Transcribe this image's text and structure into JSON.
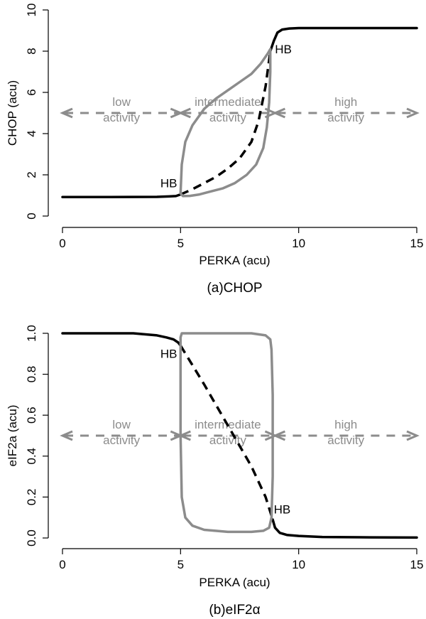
{
  "colors": {
    "stable": "#000000",
    "unstable": "#000000",
    "limit_cycle": "#8c8c8c",
    "region": "#8c8c8c"
  },
  "chart_data": [
    {
      "type": "line",
      "caption": "(a)CHOP",
      "xlabel": "PERKA (acu)",
      "ylabel": "CHOP (acu)",
      "xlim": [
        0,
        15
      ],
      "ylim": [
        0,
        10
      ],
      "xticks": [
        0,
        5,
        10,
        15
      ],
      "yticks": [
        0,
        2,
        4,
        6,
        8,
        10
      ],
      "regions": [
        {
          "lines": [
            "low",
            "activity"
          ],
          "x_range": [
            0,
            5
          ],
          "y": 5
        },
        {
          "lines": [
            "intermediate",
            "activity"
          ],
          "x_range": [
            5,
            9
          ],
          "y": 5
        },
        {
          "lines": [
            "high",
            "activity"
          ],
          "x_range": [
            9,
            15
          ],
          "y": 5
        }
      ],
      "series": [
        {
          "style": "stable",
          "x": [
            0,
            2,
            4,
            4.5,
            4.8,
            5.0
          ],
          "y": [
            0.92,
            0.92,
            0.93,
            0.95,
            0.97,
            1.05
          ]
        },
        {
          "style": "unstable",
          "x": [
            5.0,
            5.5,
            6.0,
            6.5,
            7.0,
            7.5,
            8.0,
            8.3,
            8.6,
            8.8
          ],
          "y": [
            1.05,
            1.3,
            1.6,
            1.9,
            2.3,
            2.8,
            3.6,
            4.6,
            6.3,
            8.0
          ]
        },
        {
          "style": "stable",
          "x": [
            8.8,
            8.95,
            9.1,
            9.3,
            9.6,
            10,
            12,
            15
          ],
          "y": [
            8.0,
            8.5,
            8.9,
            9.05,
            9.1,
            9.12,
            9.12,
            9.12
          ]
        },
        {
          "style": "limit_cycle",
          "closed": true,
          "x": [
            5.0,
            5.05,
            5.2,
            5.5,
            6.0,
            6.5,
            7.0,
            7.5,
            8.0,
            8.4,
            8.7,
            8.8,
            8.8,
            8.75,
            8.65,
            8.5,
            8.2,
            7.8,
            7.3,
            6.8,
            6.3,
            5.8,
            5.4,
            5.1,
            5.0
          ],
          "y": [
            1.1,
            2.5,
            3.6,
            4.4,
            5.2,
            5.7,
            6.1,
            6.5,
            6.9,
            7.4,
            7.9,
            8.1,
            7.0,
            5.5,
            4.3,
            3.3,
            2.5,
            2.0,
            1.6,
            1.35,
            1.2,
            1.05,
            0.98,
            0.97,
            1.1
          ]
        }
      ],
      "annotations": [
        {
          "text": "HB",
          "x": 4.5,
          "y": 1.4
        },
        {
          "text": "HB",
          "x": 9.35,
          "y": 7.9
        }
      ]
    },
    {
      "type": "line",
      "caption": "(b)eIF2α",
      "xlabel": "PERKA (acu)",
      "ylabel": "eIF2a (acu)",
      "xlim": [
        0,
        15
      ],
      "ylim": [
        0,
        1
      ],
      "xticks": [
        0,
        5,
        10,
        15
      ],
      "yticks": [
        0.0,
        0.2,
        0.4,
        0.6,
        0.8,
        1.0
      ],
      "ytick_labels": [
        "0.0",
        "0.2",
        "0.4",
        "0.6",
        "0.8",
        "1.0"
      ],
      "regions": [
        {
          "lines": [
            "low",
            "activity"
          ],
          "x_range": [
            0,
            5
          ],
          "y": 0.5
        },
        {
          "lines": [
            "intermediate",
            "activity"
          ],
          "x_range": [
            5,
            9
          ],
          "y": 0.5
        },
        {
          "lines": [
            "high",
            "activity"
          ],
          "x_range": [
            9,
            15
          ],
          "y": 0.5
        }
      ],
      "series": [
        {
          "style": "stable",
          "x": [
            0,
            2,
            3,
            4,
            4.4,
            4.7,
            4.9,
            5.0
          ],
          "y": [
            1.0,
            1.0,
            1.0,
            0.99,
            0.98,
            0.97,
            0.955,
            0.94
          ]
        },
        {
          "style": "unstable",
          "x": [
            5.0,
            6.0,
            7.0,
            8.0,
            8.6,
            8.9
          ],
          "y": [
            0.94,
            0.75,
            0.55,
            0.35,
            0.2,
            0.09
          ]
        },
        {
          "style": "stable",
          "x": [
            8.9,
            9.0,
            9.2,
            9.5,
            10,
            11,
            13,
            15
          ],
          "y": [
            0.09,
            0.05,
            0.025,
            0.015,
            0.01,
            0.005,
            0.003,
            0.002
          ]
        },
        {
          "style": "limit_cycle",
          "closed": true,
          "x": [
            5.0,
            5.0,
            5.05,
            5.2,
            5.5,
            6.0,
            7.0,
            8.0,
            8.5,
            8.75,
            8.85,
            8.9,
            8.9,
            8.85,
            8.8,
            8.6,
            8.0,
            7.0,
            6.0,
            5.5,
            5.15,
            5.05,
            5.0
          ],
          "y": [
            0.98,
            0.5,
            0.2,
            0.1,
            0.06,
            0.04,
            0.03,
            0.03,
            0.035,
            0.05,
            0.1,
            0.3,
            0.7,
            0.92,
            0.97,
            0.99,
            1.0,
            1.0,
            1.0,
            1.0,
            1.0,
            1.0,
            0.98
          ]
        }
      ],
      "annotations": [
        {
          "text": "HB",
          "x": 4.5,
          "y": 0.88
        },
        {
          "text": "HB",
          "x": 9.3,
          "y": 0.12
        }
      ]
    }
  ]
}
